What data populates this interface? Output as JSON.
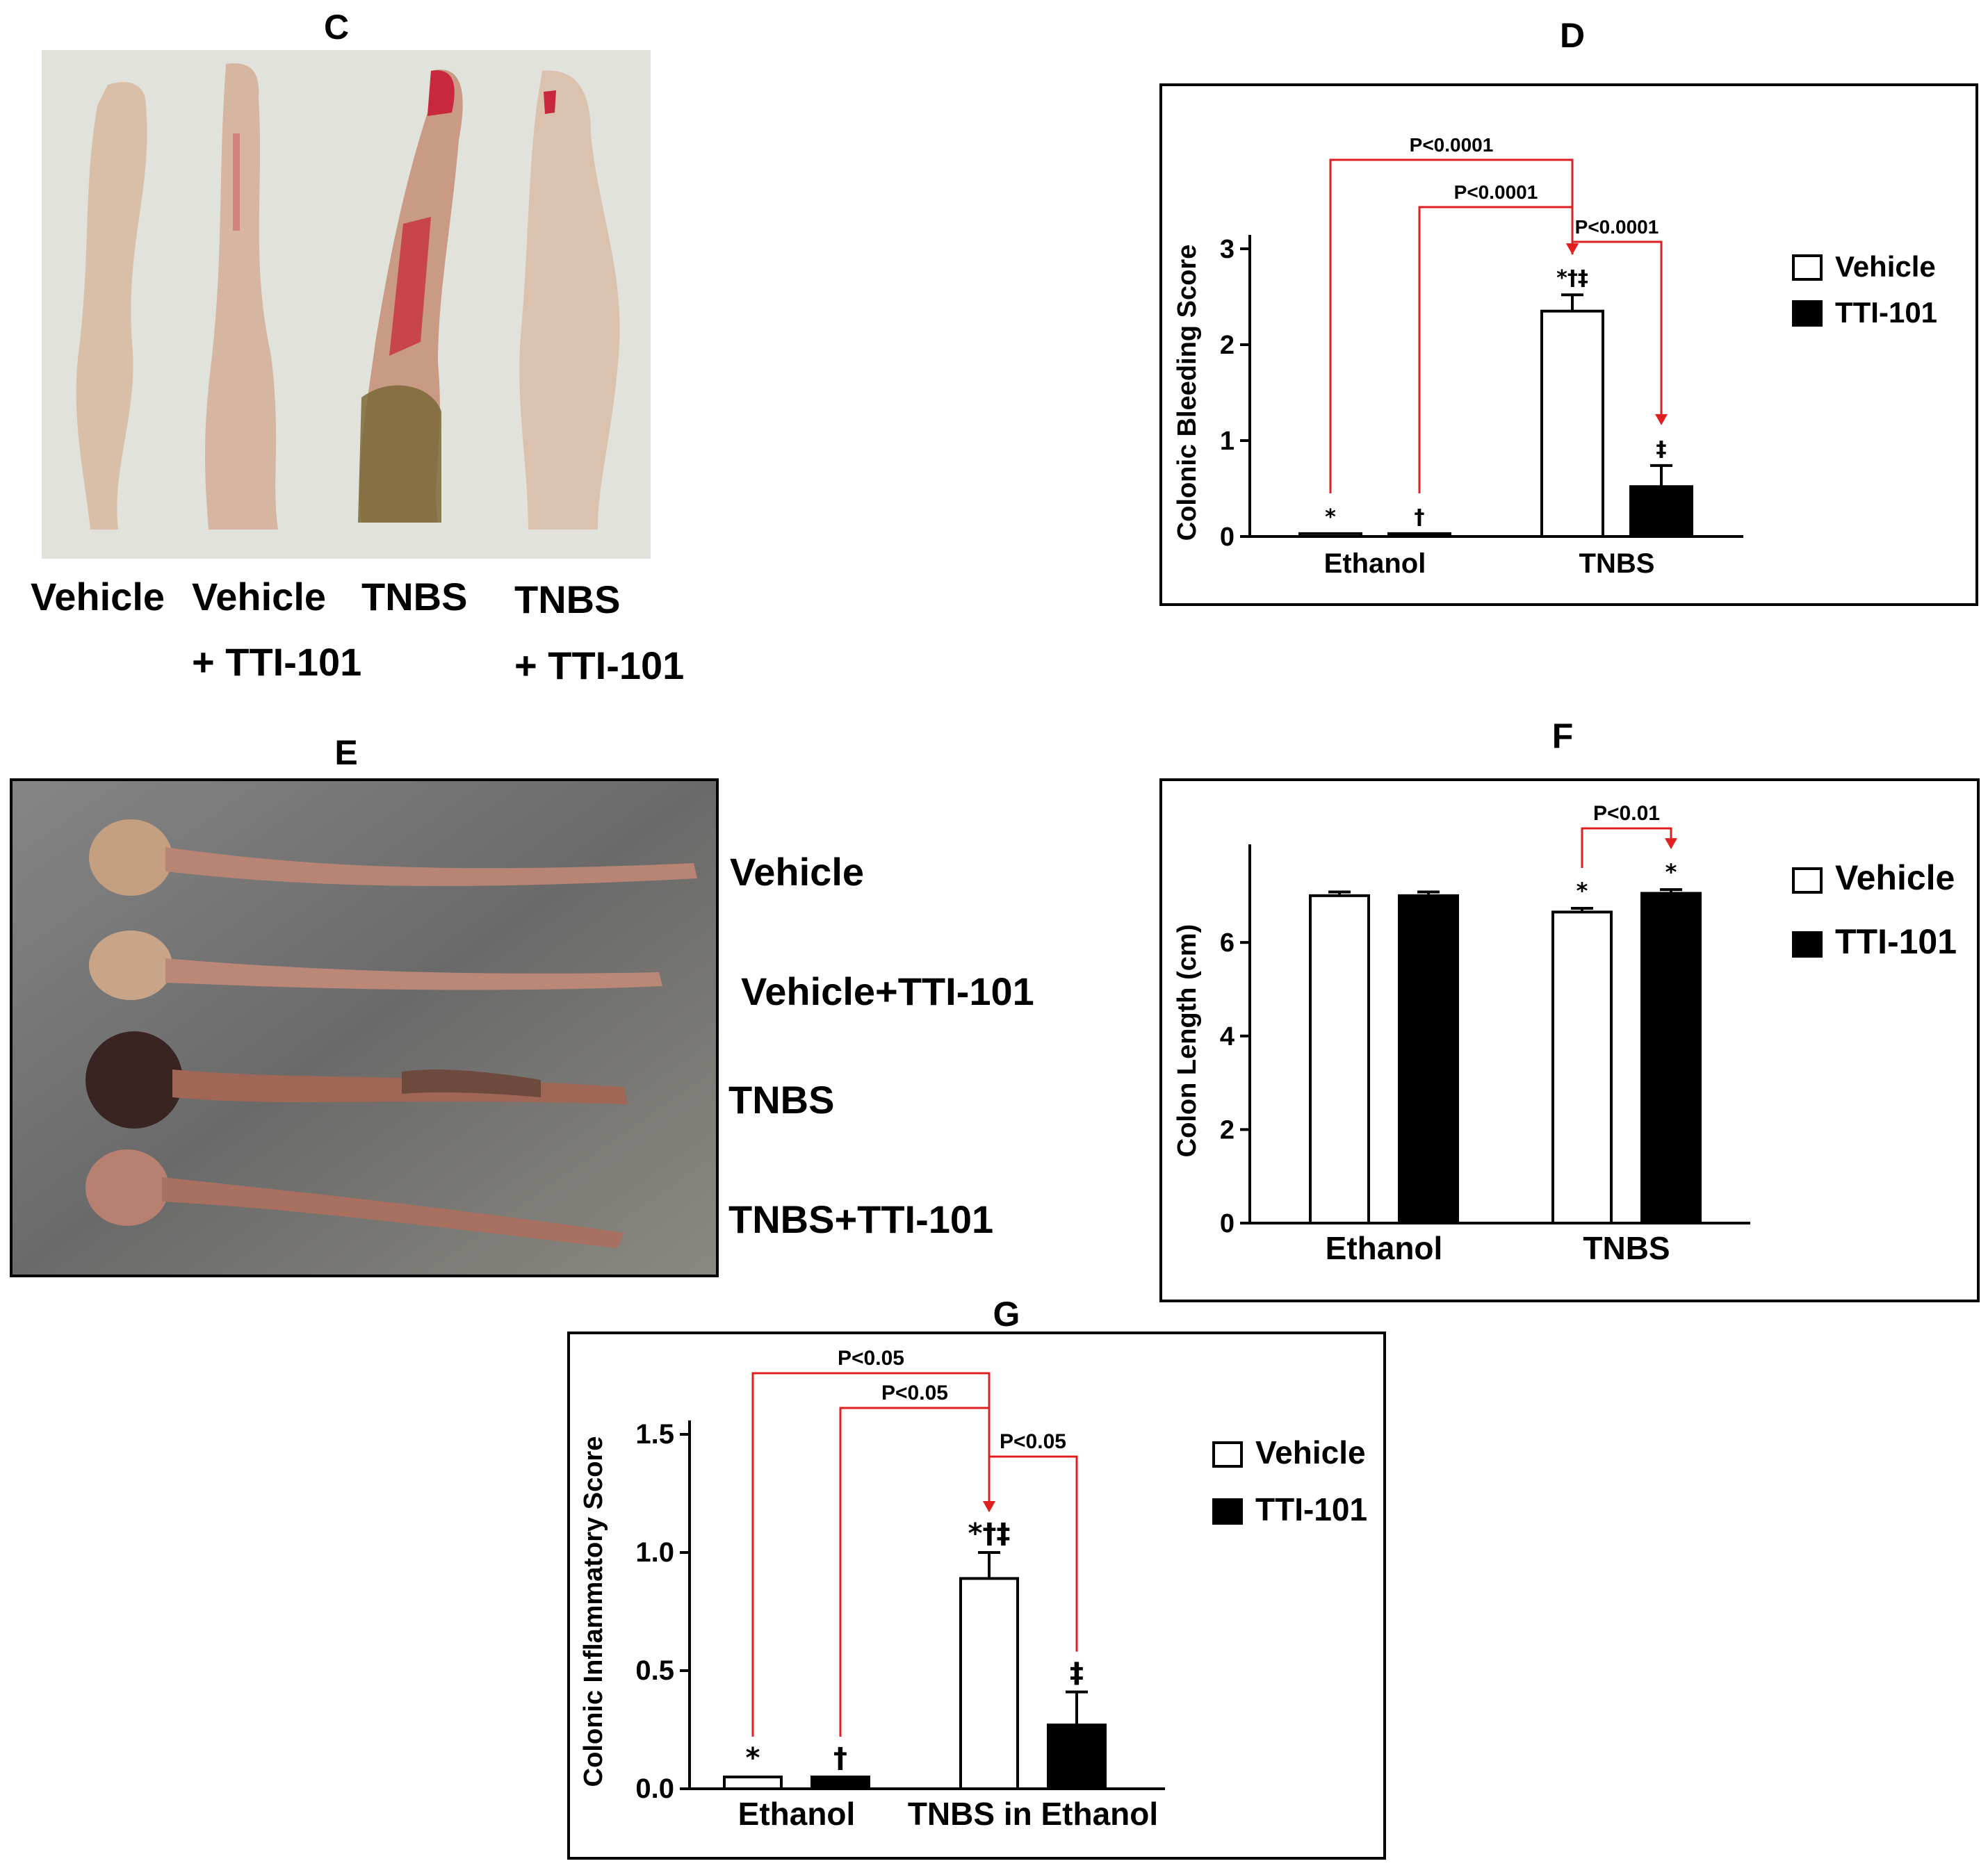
{
  "panels": {
    "C": {
      "letter": "C",
      "labels": [
        {
          "line1": "Vehicle",
          "line2": ""
        },
        {
          "line1": "Vehicle",
          "line2": "+ TTI-101"
        },
        {
          "line1": "TNBS",
          "line2": ""
        },
        {
          "line1": "TNBS",
          "line2": "+ TTI-101"
        }
      ]
    },
    "E": {
      "letter": "E",
      "labels": [
        "Vehicle",
        "Vehicle+TTI-101",
        "TNBS",
        "TNBS+TTI-101"
      ]
    }
  },
  "colors": {
    "vehicle_fill": "#ffffff",
    "tti_fill": "#000000",
    "bracket": "#e02020",
    "photo_c_bg": "#dcdcd6",
    "photo_e_bg": "#707070",
    "tissue_c": "#d7b9a3",
    "tissue_c_blood": "#c8283c",
    "tissue_e": "#b57e6e",
    "tissue_e_dark": "#3a2422"
  },
  "chart_data": [
    {
      "panel": "D",
      "type": "bar",
      "letter": "D",
      "categories": [
        "Ethanol",
        "TNBS"
      ],
      "ylabel": "Colonic Bleeding Score",
      "ylim": [
        0,
        3
      ],
      "yticks": [
        "0",
        "1",
        "2",
        "3"
      ],
      "ytick_values": [
        0,
        1,
        2,
        3
      ],
      "series": [
        {
          "name": "Vehicle",
          "values": [
            0.03,
            2.35
          ],
          "errors": [
            0,
            0.17
          ],
          "markers": [
            "*",
            "*†‡"
          ]
        },
        {
          "name": "TTI-101",
          "values": [
            0.03,
            0.52
          ],
          "errors": [
            0,
            0.22
          ],
          "markers": [
            "†",
            "‡"
          ]
        }
      ],
      "legend": "right",
      "brackets": [
        {
          "label": "P<0.0001",
          "from": [
            0,
            0
          ],
          "to": [
            1,
            0
          ]
        },
        {
          "label": "P<0.0001",
          "from": [
            0,
            1
          ],
          "to": [
            1,
            0
          ]
        },
        {
          "label": "P<0.0001",
          "from": [
            1,
            0
          ],
          "to": [
            1,
            1
          ]
        }
      ]
    },
    {
      "panel": "F",
      "type": "bar",
      "letter": "F",
      "categories": [
        "Ethanol",
        "TNBS"
      ],
      "ylabel": "Colon Length (cm)",
      "ylim": [
        0,
        7.8
      ],
      "yticks": [
        "0",
        "2",
        "4",
        "6"
      ],
      "ytick_values": [
        0,
        2,
        4,
        6
      ],
      "series": [
        {
          "name": "Vehicle",
          "values": [
            7.0,
            6.65
          ],
          "errors": [
            0.08,
            0.08
          ],
          "markers": [
            "",
            "*"
          ]
        },
        {
          "name": "TTI-101",
          "values": [
            7.0,
            7.05
          ],
          "errors": [
            0.08,
            0.08
          ],
          "markers": [
            "",
            "*"
          ]
        }
      ],
      "legend": "right",
      "brackets": [
        {
          "label": "P<0.01",
          "from": [
            1,
            0
          ],
          "to": [
            1,
            1
          ]
        }
      ]
    },
    {
      "panel": "G",
      "type": "bar",
      "letter": "G",
      "categories": [
        "Ethanol",
        "TNBS in Ethanol"
      ],
      "ylabel": "Colonic Inflammatory Score",
      "ylim": [
        0,
        1.5
      ],
      "yticks": [
        "0.0",
        "0.5",
        "1.0",
        "1.5"
      ],
      "ytick_values": [
        0,
        0.5,
        1.0,
        1.5
      ],
      "series": [
        {
          "name": "Vehicle",
          "values": [
            0.05,
            0.89
          ],
          "errors": [
            0,
            0.11
          ],
          "markers": [
            "*",
            "*†‡"
          ]
        },
        {
          "name": "TTI-101",
          "values": [
            0.05,
            0.27
          ],
          "errors": [
            0,
            0.14
          ],
          "markers": [
            "†",
            "‡"
          ]
        }
      ],
      "legend": "right",
      "brackets": [
        {
          "label": "P<0.05",
          "from": [
            0,
            0
          ],
          "to": [
            1,
            0
          ]
        },
        {
          "label": "P<0.05",
          "from": [
            0,
            1
          ],
          "to": [
            1,
            0
          ]
        },
        {
          "label": "P<0.05",
          "from": [
            1,
            1
          ],
          "to": [
            1,
            0
          ]
        }
      ]
    }
  ]
}
